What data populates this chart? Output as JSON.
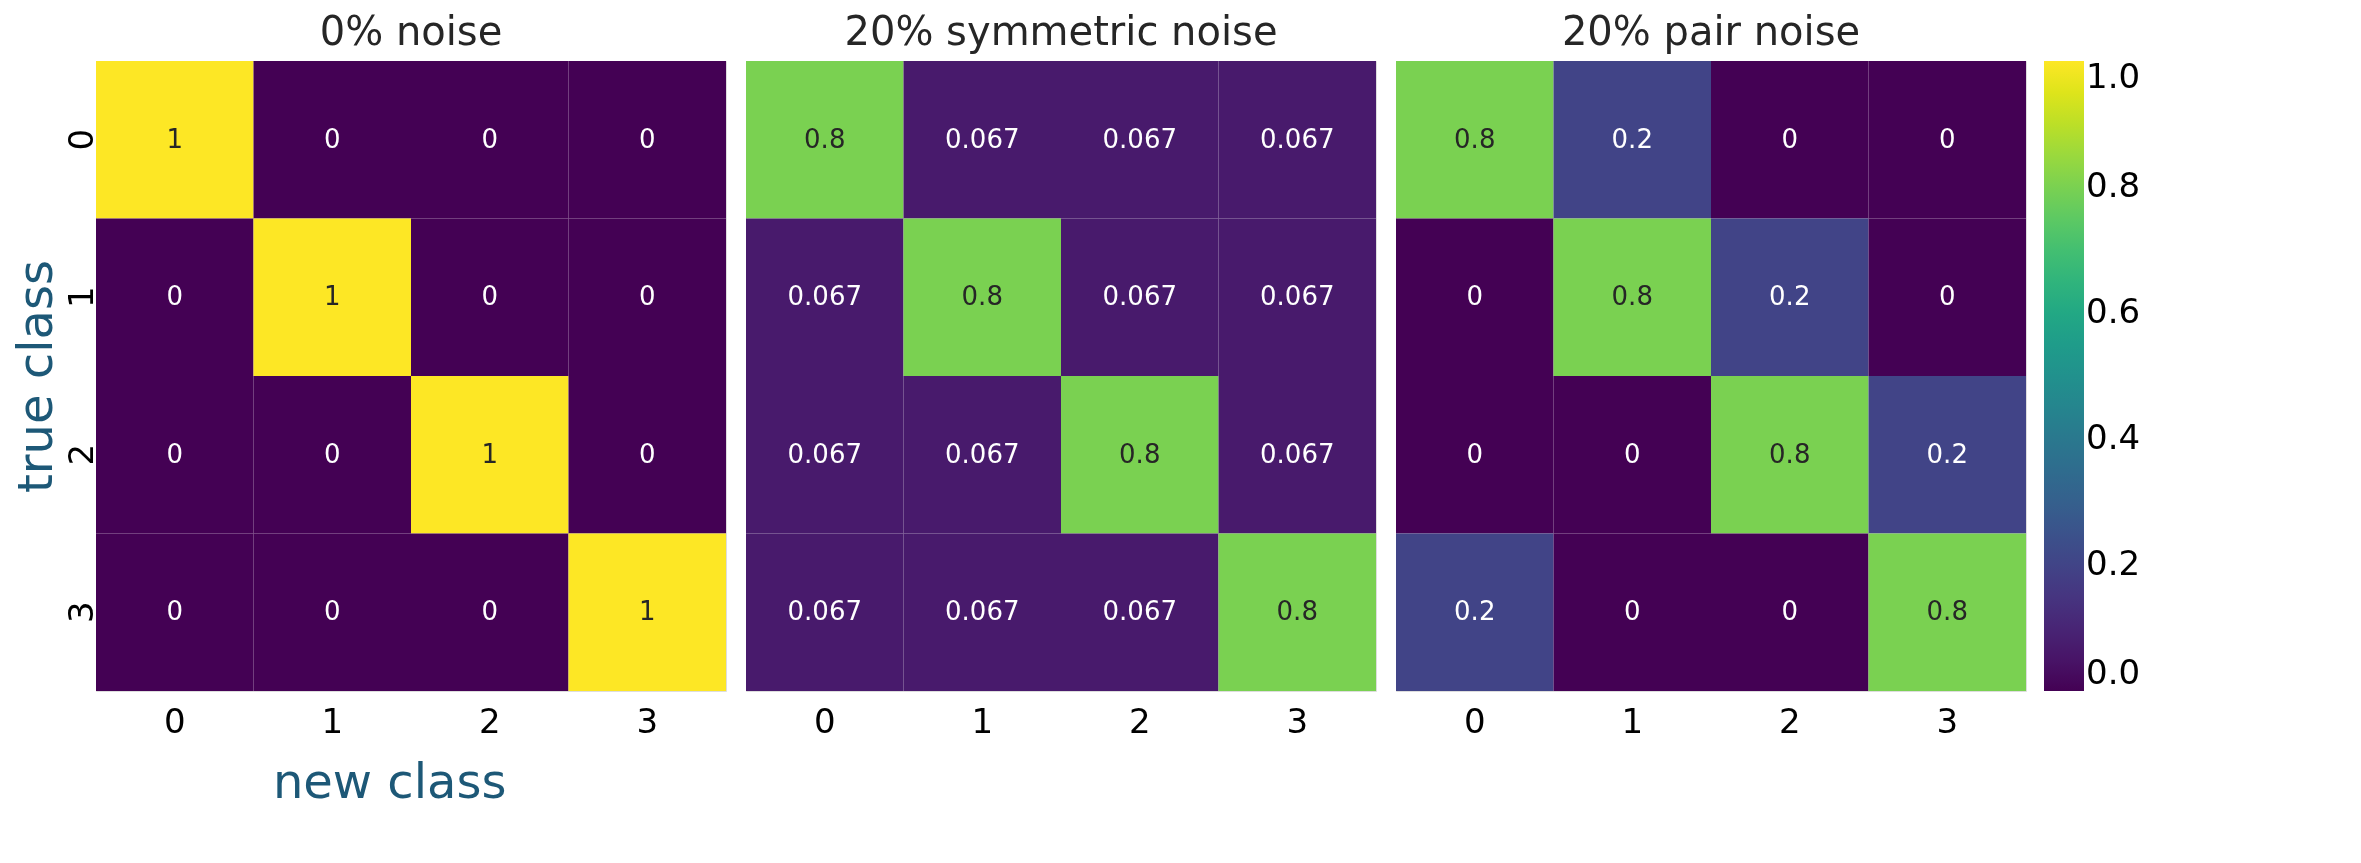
{
  "chart_data": [
    {
      "type": "heatmap",
      "title": "0% noise",
      "xlabel": "new class",
      "ylabel": "true class",
      "categories": [
        "0",
        "1",
        "2",
        "3"
      ],
      "y_categories": [
        "0",
        "1",
        "2",
        "3"
      ],
      "cells": [
        [
          1,
          0,
          0,
          0
        ],
        [
          0,
          1,
          0,
          0
        ],
        [
          0,
          0,
          1,
          0
        ],
        [
          0,
          0,
          0,
          1
        ]
      ],
      "data_labels": true
    },
    {
      "type": "heatmap",
      "title": "20% symmetric noise",
      "categories": [
        "0",
        "1",
        "2",
        "3"
      ],
      "y_categories": [
        "0",
        "1",
        "2",
        "3"
      ],
      "cells": [
        [
          0.8,
          0.067,
          0.067,
          0.067
        ],
        [
          0.067,
          0.8,
          0.067,
          0.067
        ],
        [
          0.067,
          0.067,
          0.8,
          0.067
        ],
        [
          0.067,
          0.067,
          0.067,
          0.8
        ]
      ],
      "data_labels": true,
      "tick_labels": "x"
    },
    {
      "type": "heatmap",
      "title": "20% pair noise",
      "categories": [
        "0",
        "1",
        "2",
        "3"
      ],
      "y_categories": [
        "0",
        "1",
        "2",
        "3"
      ],
      "cells": [
        [
          0.8,
          0.2,
          0,
          0
        ],
        [
          0,
          0.8,
          0.2,
          0
        ],
        [
          0,
          0,
          0.8,
          0.2
        ],
        [
          0.2,
          0,
          0,
          0.8
        ]
      ],
      "clim": [
        0,
        1
      ],
      "data_labels": true,
      "tick_labels": "x",
      "cticks": [
        {
          "value": 0,
          "label": "0.0"
        },
        {
          "value": 0.2,
          "label": "0.2"
        },
        {
          "value": 0.4,
          "label": "0.4"
        },
        {
          "value": 0.6,
          "label": "0.6"
        },
        {
          "value": 0.8,
          "label": "0.8"
        },
        {
          "value": 1,
          "label": "1.0"
        }
      ]
    }
  ]
}
